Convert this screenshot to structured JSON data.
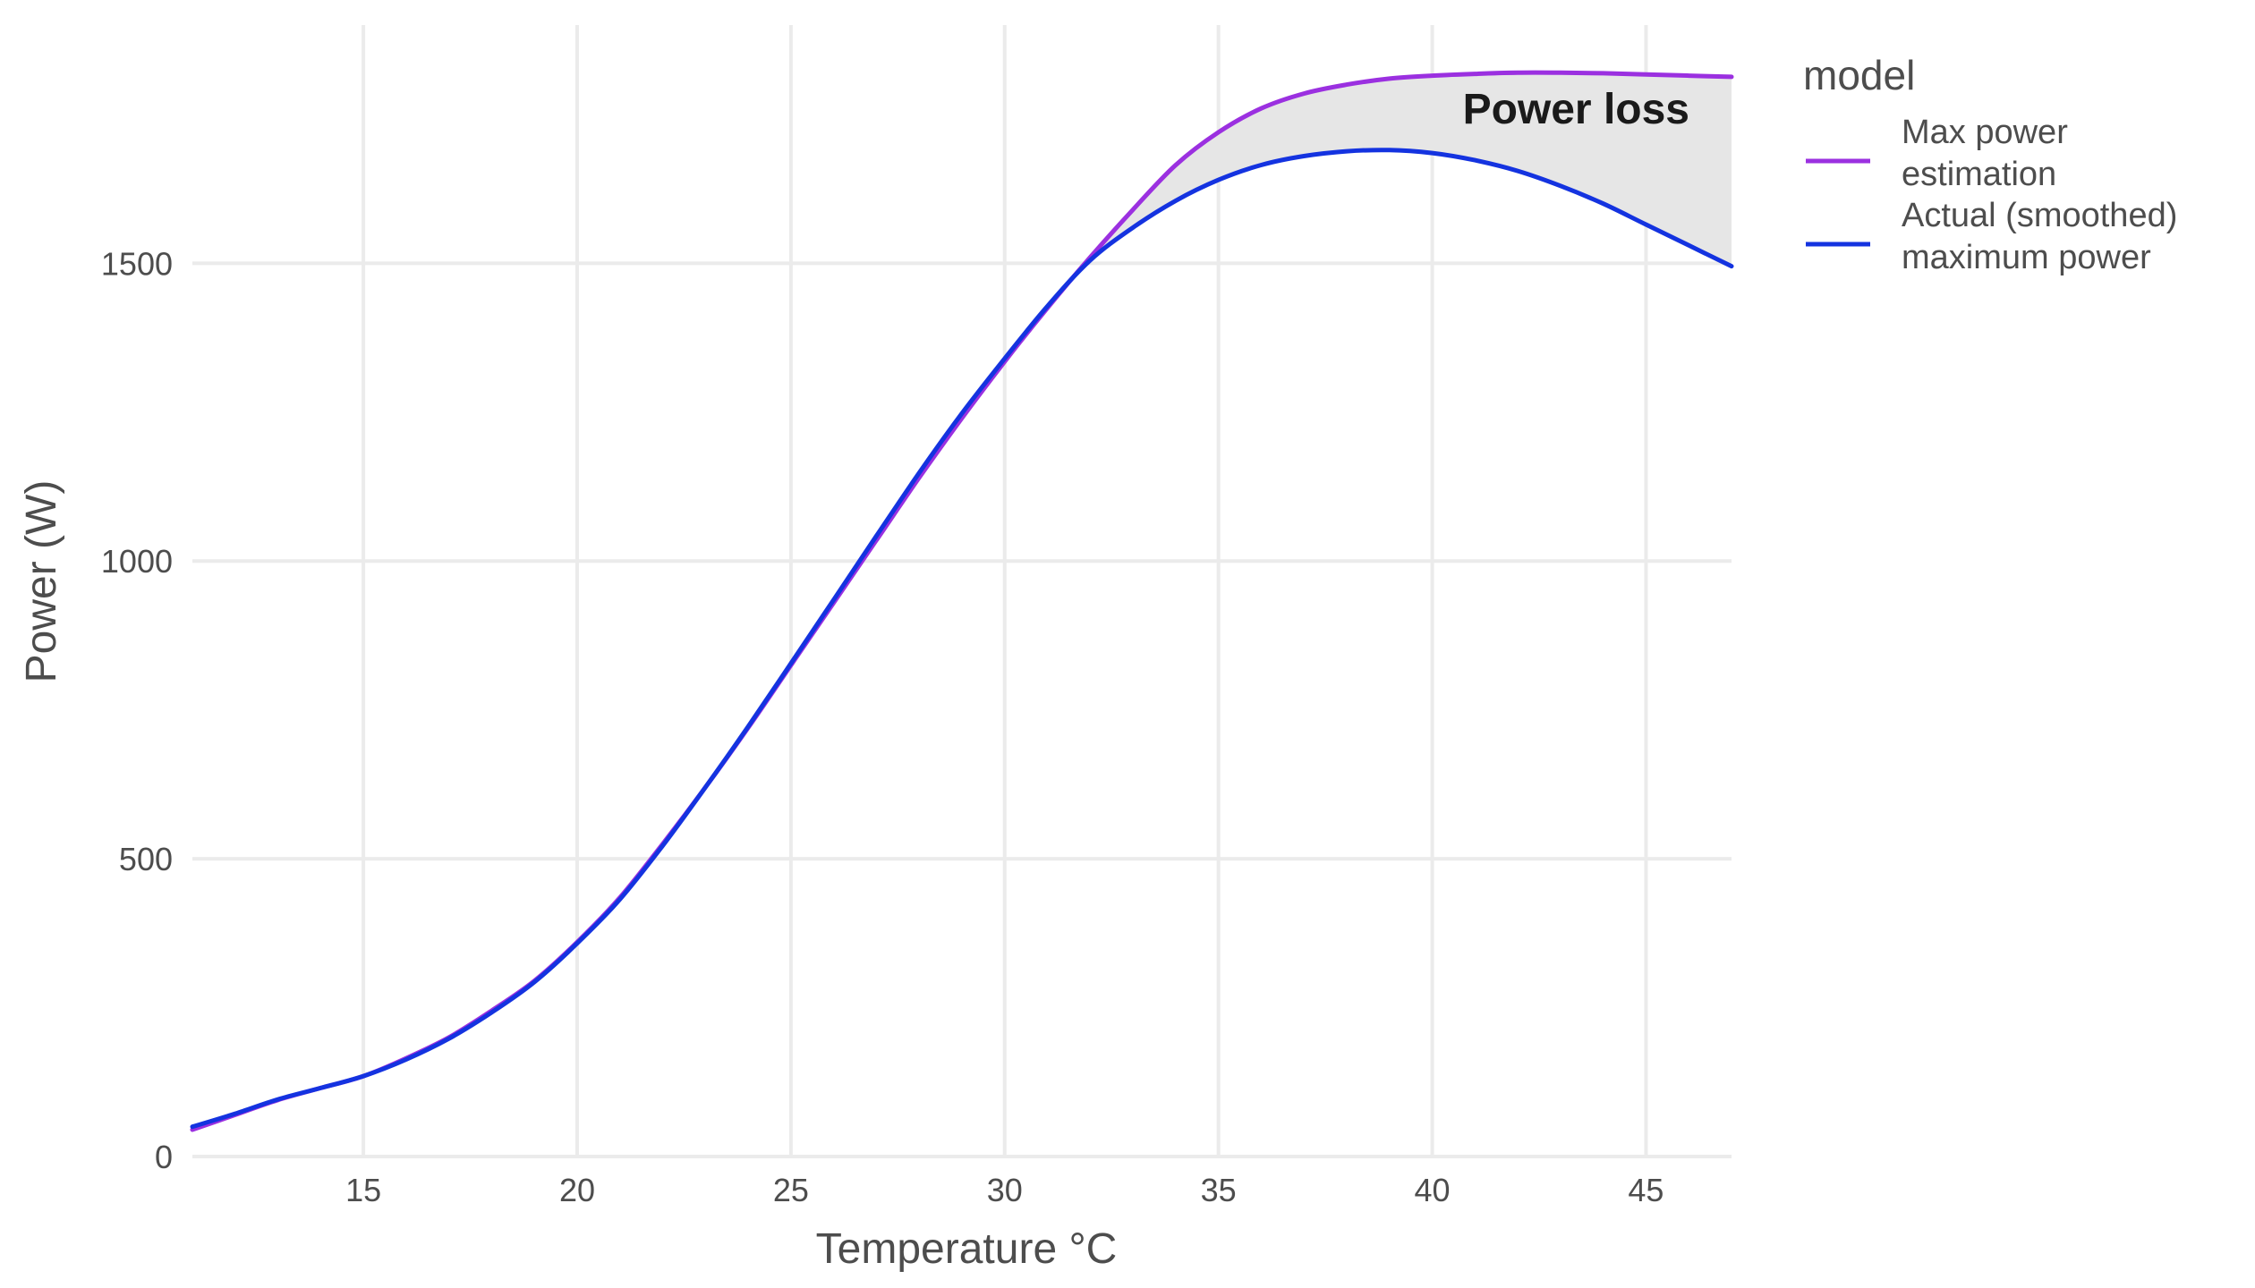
{
  "chart_data": {
    "type": "line",
    "xlabel": "Temperature °C",
    "ylabel": "Power (W)",
    "xlim": [
      11,
      47
    ],
    "ylim": [
      0,
      1900
    ],
    "x_ticks": [
      15,
      20,
      25,
      30,
      35,
      40,
      45
    ],
    "y_ticks": [
      0,
      500,
      1000,
      1500
    ],
    "grid": true,
    "legend": {
      "title": "model",
      "placement": "right"
    },
    "annotation": {
      "text": "Power loss",
      "x": 43,
      "y": 1750
    },
    "shaded_region": {
      "description_fill": "#e6e6e6",
      "between_series": [
        0,
        1
      ]
    },
    "x": [
      11,
      12,
      13,
      14,
      15,
      16,
      17,
      18,
      19,
      20,
      21,
      22,
      23,
      24,
      25,
      26,
      27,
      28,
      29,
      30,
      31,
      32,
      33,
      34,
      35,
      36,
      37,
      38,
      39,
      40,
      41,
      42,
      43,
      44,
      45,
      46,
      47
    ],
    "series": [
      {
        "name": "Max power estimation",
        "label_lines": [
          "Max power",
          "estimation"
        ],
        "color": "#9b30e0",
        "values": [
          45,
          70,
          95,
          115,
          135,
          165,
          200,
          245,
          295,
          360,
          435,
          525,
          620,
          720,
          825,
          930,
          1035,
          1140,
          1240,
          1335,
          1425,
          1510,
          1590,
          1665,
          1720,
          1760,
          1785,
          1800,
          1810,
          1815,
          1818,
          1820,
          1820,
          1819,
          1817,
          1815,
          1813
        ]
      },
      {
        "name": "Actual (smoothed) maximum power",
        "label_lines": [
          "Actual (smoothed)",
          "maximum power"
        ],
        "color": "#1433e0",
        "values": [
          50,
          72,
          96,
          115,
          135,
          163,
          198,
          242,
          293,
          358,
          432,
          522,
          620,
          722,
          828,
          935,
          1042,
          1148,
          1248,
          1340,
          1428,
          1505,
          1560,
          1605,
          1640,
          1665,
          1680,
          1688,
          1690,
          1685,
          1673,
          1655,
          1630,
          1600,
          1565,
          1530,
          1495
        ]
      }
    ]
  }
}
